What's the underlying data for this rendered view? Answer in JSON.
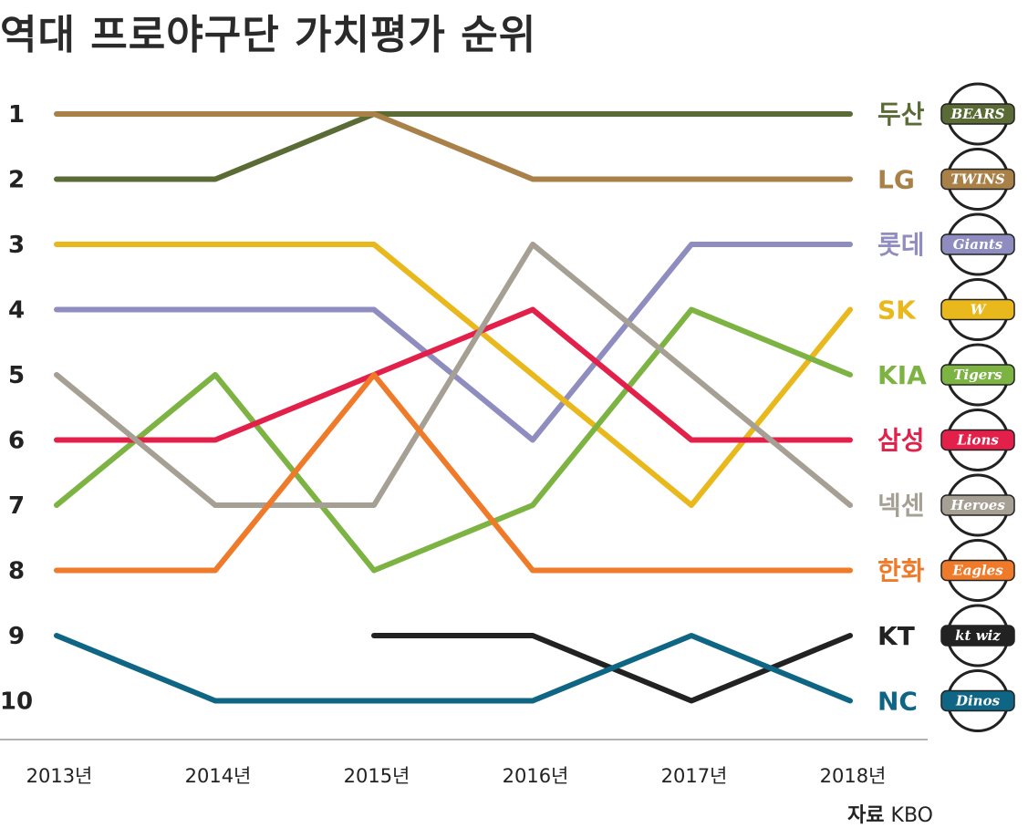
{
  "chart_data": {
    "type": "line",
    "title": "역대 프로야구단 가치평가 순위",
    "x": [
      "2013년",
      "2014년",
      "2015년",
      "2016년",
      "2017년",
      "2018년"
    ],
    "y_ticks": [
      "1",
      "2",
      "3",
      "4",
      "5",
      "6",
      "7",
      "8",
      "9",
      "10"
    ],
    "ylim": [
      1,
      10
    ],
    "y_inverted": true,
    "grid": false,
    "legend": "right",
    "series": [
      {
        "name": "두산",
        "logo": "BEARS",
        "color": "#5a6b35",
        "values": [
          2,
          2,
          1,
          1,
          1,
          1
        ]
      },
      {
        "name": "LG",
        "logo": "TWINS",
        "color": "#a88048",
        "values": [
          1,
          1,
          1,
          2,
          2,
          2
        ]
      },
      {
        "name": "롯데",
        "logo": "Giants",
        "color": "#8f8cc0",
        "values": [
          4,
          4,
          4,
          6,
          3,
          3
        ]
      },
      {
        "name": "SK",
        "logo": "W",
        "color": "#e8b81c",
        "values": [
          3,
          3,
          3,
          5,
          7,
          4
        ]
      },
      {
        "name": "KIA",
        "logo": "Tigers",
        "color": "#7cb342",
        "values": [
          7,
          5,
          8,
          7,
          4,
          5
        ]
      },
      {
        "name": "삼성",
        "logo": "Lions",
        "color": "#e3204a",
        "values": [
          6,
          6,
          5,
          4,
          6,
          6
        ]
      },
      {
        "name": "넥센",
        "logo": "Heroes",
        "color": "#a59f94",
        "values": [
          5,
          7,
          7,
          3,
          5,
          7
        ]
      },
      {
        "name": "한화",
        "logo": "Eagles",
        "color": "#ef7a2a",
        "values": [
          8,
          8,
          5,
          8,
          8,
          8
        ]
      },
      {
        "name": "KT",
        "logo": "kt wiz",
        "color": "#222222",
        "values": [
          null,
          null,
          9,
          9,
          10,
          9
        ]
      },
      {
        "name": "NC",
        "logo": "Dinos",
        "color": "#0e6684",
        "values": [
          9,
          10,
          10,
          10,
          9,
          10
        ]
      }
    ]
  },
  "source": {
    "prefix": "자료",
    "name": "KBO"
  },
  "colors": {
    "axis": "#999999",
    "logo_ring": "#222222"
  }
}
